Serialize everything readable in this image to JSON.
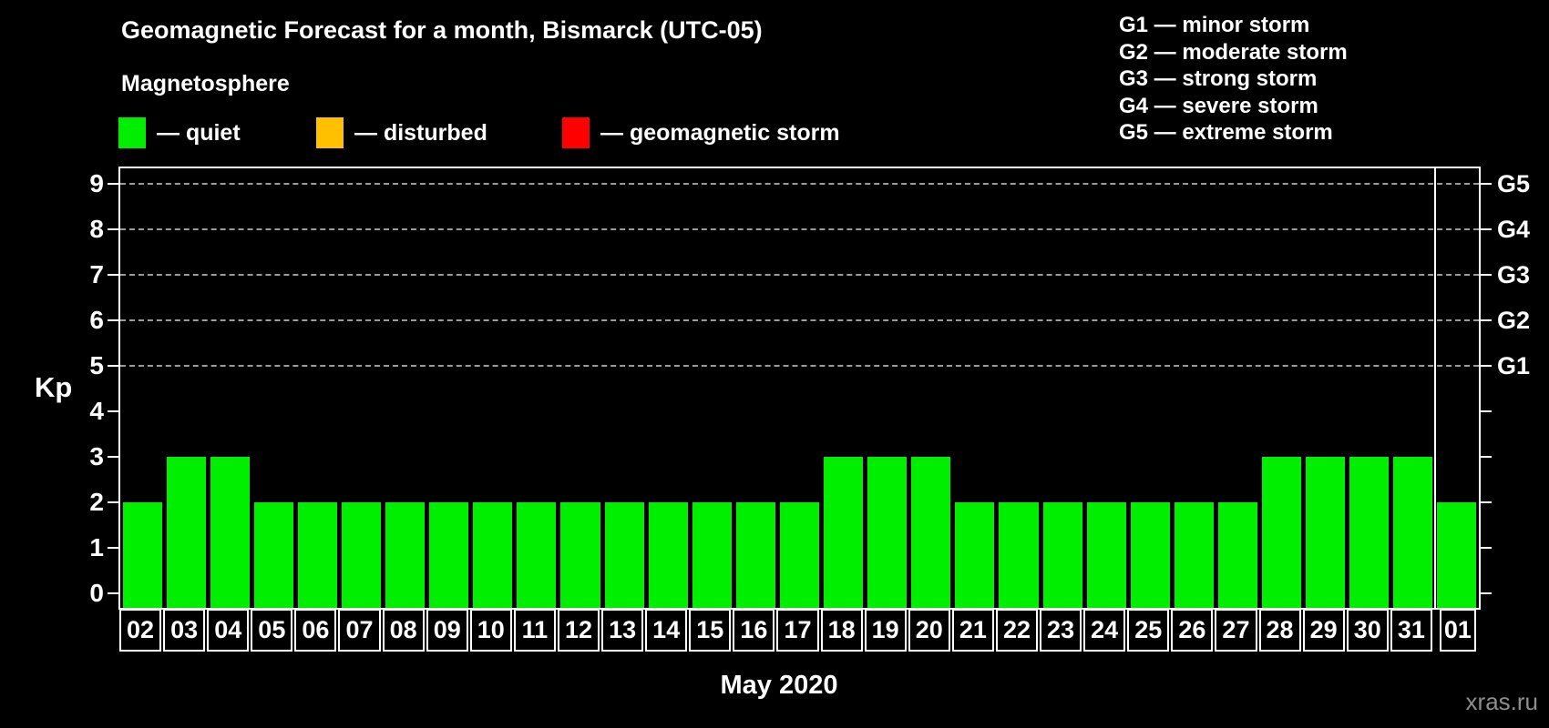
{
  "header": {
    "title": "Geomagnetic Forecast for a month, Bismarck (UTC-05)",
    "subtitle": "Magnetosphere"
  },
  "legend": {
    "items": [
      {
        "key": "quiet",
        "label": "— quiet",
        "color": "#00ee00"
      },
      {
        "key": "disturbed",
        "label": "— disturbed",
        "color": "#ffc000"
      },
      {
        "key": "storm",
        "label": "— geomagnetic storm",
        "color": "#ff0000"
      }
    ]
  },
  "g_scale_legend": {
    "items": [
      {
        "code": "G1",
        "name": "minor storm"
      },
      {
        "code": "G2",
        "name": "moderate storm"
      },
      {
        "code": "G3",
        "name": "strong storm"
      },
      {
        "code": "G4",
        "name": "severe storm"
      },
      {
        "code": "G5",
        "name": "extreme storm"
      }
    ]
  },
  "chart_data": {
    "type": "bar",
    "title": "Geomagnetic Forecast for a month, Bismarck (UTC-05)",
    "categories": [
      "02",
      "03",
      "04",
      "05",
      "06",
      "07",
      "08",
      "09",
      "10",
      "11",
      "12",
      "13",
      "14",
      "15",
      "16",
      "17",
      "18",
      "19",
      "20",
      "21",
      "22",
      "23",
      "24",
      "25",
      "26",
      "27",
      "28",
      "29",
      "30",
      "31",
      "01"
    ],
    "values": [
      2,
      3,
      3,
      2,
      2,
      2,
      2,
      2,
      2,
      2,
      2,
      2,
      2,
      2,
      2,
      2,
      3,
      3,
      3,
      2,
      2,
      2,
      2,
      2,
      2,
      2,
      3,
      3,
      3,
      3,
      2
    ],
    "bar_color": "#00ee00",
    "xlabel": "May 2020",
    "ylabel": "Kp",
    "ylim": [
      0,
      9
    ],
    "yticks": [
      0,
      1,
      2,
      3,
      4,
      5,
      6,
      7,
      8,
      9
    ],
    "gridline_values": [
      5,
      6,
      7,
      8,
      9
    ],
    "gridline_style": "dashed",
    "right_axis_ticks": [
      {
        "value": 5,
        "label": "G1"
      },
      {
        "value": 6,
        "label": "G2"
      },
      {
        "value": 7,
        "label": "G3"
      },
      {
        "value": 8,
        "label": "G4"
      },
      {
        "value": 9,
        "label": "G5"
      }
    ],
    "month_separator_index": 30,
    "legend_position": "top-left and top-right"
  },
  "watermark": "xras.ru"
}
